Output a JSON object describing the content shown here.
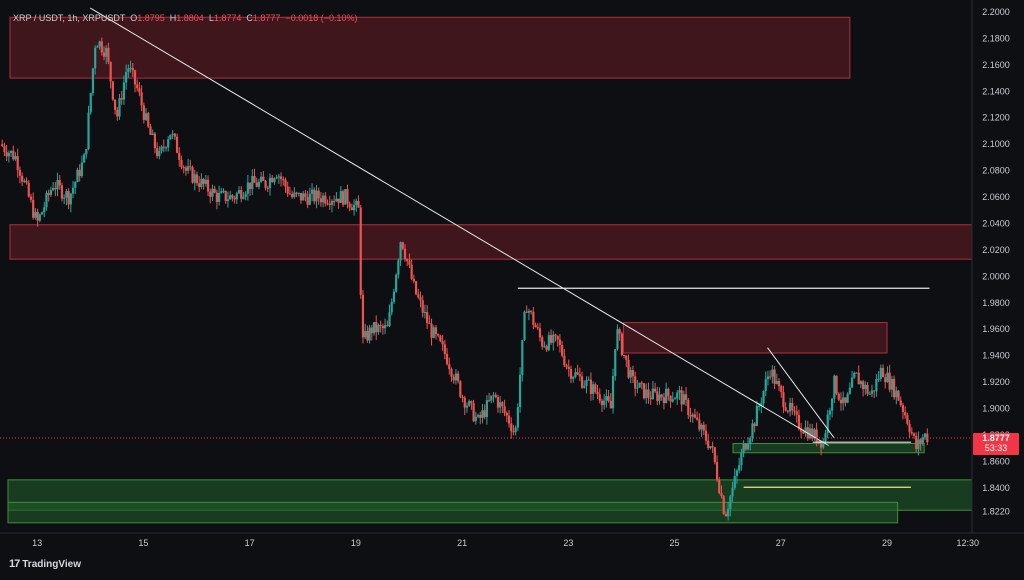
{
  "header": {
    "symbol": "XRP / USDT, 1h, XRPUSDT",
    "o_label": "O",
    "o_value": "1.8795",
    "h_label": "H",
    "h_value": "1.8804",
    "l_label": "L",
    "l_value": "1.8774",
    "c_label": "C",
    "c_value": "1.8777",
    "change": "−0.0018 (−0.10%)"
  },
  "brand": {
    "mark": "17",
    "name": "TradingView"
  },
  "colors": {
    "background": "#0e0f12",
    "bull": "#26a69a",
    "bear": "#ef5350",
    "supply_zone": "#7a1f2b",
    "demand_zone": "#1f5a28",
    "trendline": "#e6e6e6",
    "level_yellow": "#f1e38a",
    "price_tag": "#f23645"
  },
  "chart_data": {
    "type": "candlestick",
    "title": "XRP / USDT, 1h, XRPUSDT",
    "ylim": [
      1.8126,
      2.2
    ],
    "y_ticks": [
      "2.2000",
      "2.1800",
      "2.1600",
      "2.1400",
      "2.1200",
      "2.1000",
      "2.0800",
      "2.0600",
      "2.0400",
      "2.0200",
      "2.0000",
      "1.9800",
      "1.9600",
      "1.9400",
      "1.9200",
      "1.9000",
      "1.8800",
      "1.8600",
      "1.8400",
      "1.8220"
    ],
    "x_ticks": [
      "13",
      "15",
      "17",
      "19",
      "21",
      "23",
      "25",
      "27",
      "29",
      "12:30"
    ],
    "x_range_days": [
      12.3,
      30.6
    ],
    "current_price": "1.8777",
    "countdown": "53:33",
    "price_path": [
      [
        12.3,
        2.1
      ],
      [
        12.6,
        2.09
      ],
      [
        13.0,
        2.04
      ],
      [
        13.3,
        2.07
      ],
      [
        13.6,
        2.06
      ],
      [
        13.9,
        2.09
      ],
      [
        14.1,
        2.18
      ],
      [
        14.3,
        2.17
      ],
      [
        14.5,
        2.12
      ],
      [
        14.7,
        2.16
      ],
      [
        14.9,
        2.14
      ],
      [
        15.1,
        2.11
      ],
      [
        15.3,
        2.09
      ],
      [
        15.5,
        2.11
      ],
      [
        15.8,
        2.08
      ],
      [
        16.1,
        2.07
      ],
      [
        16.4,
        2.06
      ],
      [
        16.7,
        2.06
      ],
      [
        17.0,
        2.07
      ],
      [
        17.3,
        2.07
      ],
      [
        17.5,
        2.08
      ],
      [
        17.8,
        2.06
      ],
      [
        18.1,
        2.06
      ],
      [
        18.5,
        2.06
      ],
      [
        18.8,
        2.06
      ],
      [
        19.05,
        2.05
      ],
      [
        19.12,
        1.95
      ],
      [
        19.3,
        1.96
      ],
      [
        19.6,
        1.96
      ],
      [
        19.85,
        2.03
      ],
      [
        20.1,
        1.99
      ],
      [
        20.4,
        1.96
      ],
      [
        20.7,
        1.94
      ],
      [
        21.0,
        1.91
      ],
      [
        21.3,
        1.89
      ],
      [
        21.6,
        1.91
      ],
      [
        21.9,
        1.89
      ],
      [
        22.0,
        1.88
      ],
      [
        22.2,
        1.98
      ],
      [
        22.5,
        1.95
      ],
      [
        22.8,
        1.95
      ],
      [
        23.0,
        1.93
      ],
      [
        23.3,
        1.92
      ],
      [
        23.6,
        1.91
      ],
      [
        23.8,
        1.9
      ],
      [
        23.9,
        1.96
      ],
      [
        24.2,
        1.92
      ],
      [
        24.5,
        1.91
      ],
      [
        24.8,
        1.91
      ],
      [
        25.1,
        1.91
      ],
      [
        25.4,
        1.89
      ],
      [
        25.7,
        1.87
      ],
      [
        25.85,
        1.84
      ],
      [
        25.95,
        1.82
      ],
      [
        26.1,
        1.84
      ],
      [
        26.3,
        1.87
      ],
      [
        26.5,
        1.89
      ],
      [
        26.8,
        1.93
      ],
      [
        27.0,
        1.91
      ],
      [
        27.3,
        1.89
      ],
      [
        27.6,
        1.88
      ],
      [
        27.8,
        1.875
      ],
      [
        28.0,
        1.92
      ],
      [
        28.2,
        1.9
      ],
      [
        28.4,
        1.925
      ],
      [
        28.7,
        1.91
      ],
      [
        28.9,
        1.93
      ],
      [
        29.2,
        1.91
      ],
      [
        29.4,
        1.89
      ],
      [
        29.55,
        1.87
      ],
      [
        29.7,
        1.88
      ],
      [
        29.8,
        1.8777
      ]
    ],
    "supply_zones": [
      {
        "from_day": 12.3,
        "to_day": 28.3,
        "low": 2.15,
        "high": 2.196
      },
      {
        "from_day": 12.3,
        "to_day": 30.6,
        "low": 2.013,
        "high": 2.039
      },
      {
        "from_day": 23.85,
        "to_day": 29.0,
        "low": 1.942,
        "high": 1.965
      }
    ],
    "demand_zones": [
      {
        "from_day": 12.3,
        "to_day": 30.6,
        "low": 1.823,
        "high": 1.846
      },
      {
        "from_day": 12.3,
        "to_day": 29.2,
        "low": 1.8135,
        "high": 1.829
      },
      {
        "from_day": 26.1,
        "to_day": 29.7,
        "low": 1.8665,
        "high": 1.8735
      }
    ],
    "trendlines": [
      {
        "from": [
          14.0,
          2.203
        ],
        "to": [
          27.9,
          1.872
        ]
      },
      {
        "from": [
          26.75,
          1.946
        ],
        "to": [
          28.0,
          1.878
        ]
      }
    ],
    "horizontal_lines": [
      {
        "from_day": 22.05,
        "to_day": 29.8,
        "price": 1.991,
        "color": "trendline"
      },
      {
        "from_day": 26.3,
        "to_day": 29.45,
        "price": 1.8404,
        "color": "level_yellow"
      },
      {
        "from_day": 27.6,
        "to_day": 29.45,
        "price": 1.8745,
        "color": "trendline"
      }
    ]
  }
}
